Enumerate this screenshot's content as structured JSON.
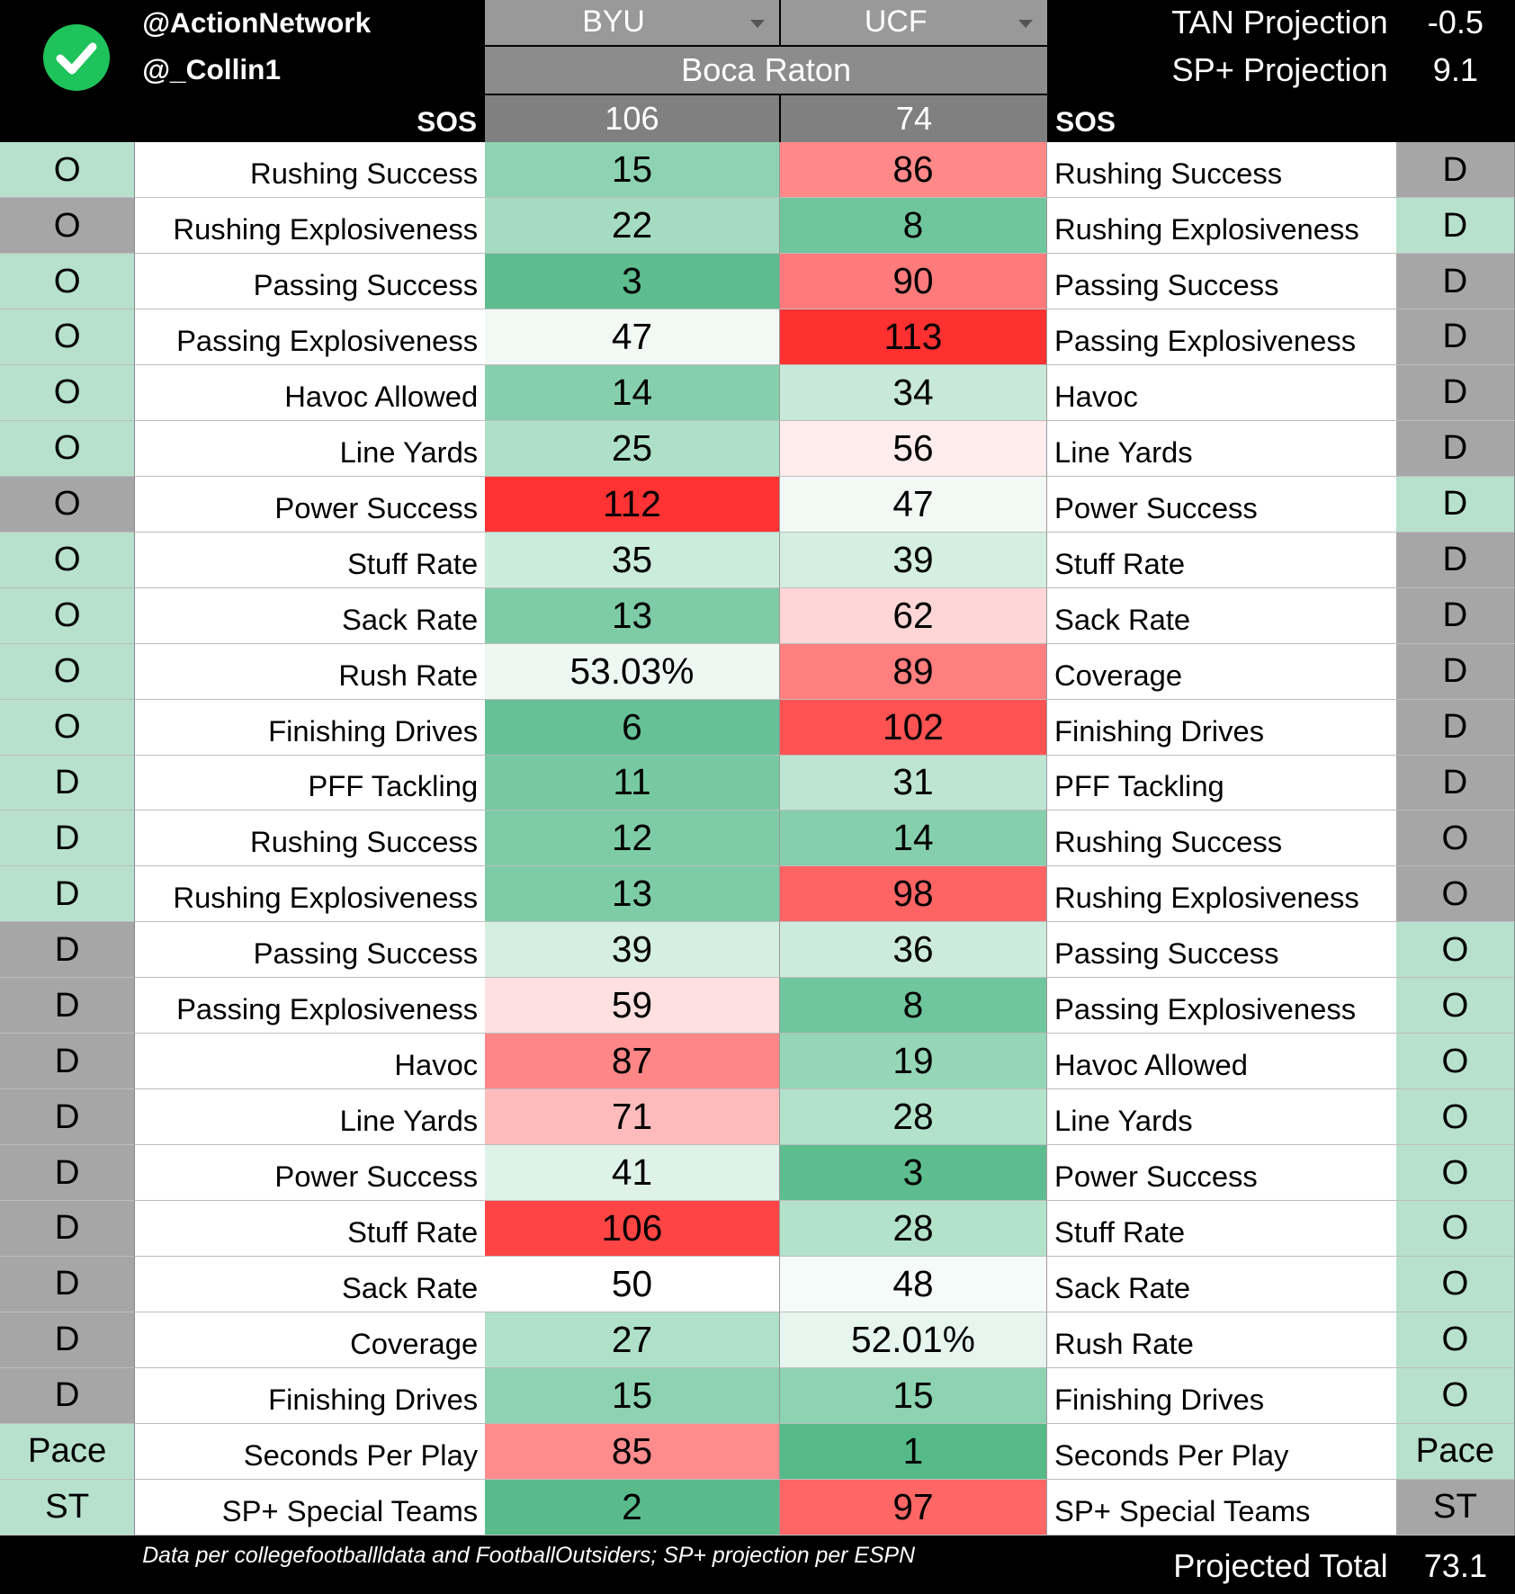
{
  "header": {
    "handle_1": "@ActionNetwork",
    "handle_2": "@_Collin1",
    "team_1": "BYU",
    "team_2": "UCF",
    "location": "Boca Raton",
    "sos_label_left": "SOS",
    "sos_label_right": "SOS",
    "sos_1": 106,
    "sos_2": 74,
    "tan_label": "TAN Projection",
    "tan_value": -0.5,
    "sp_label": "SP+ Projection",
    "sp_value": 9.1
  },
  "colors": {
    "side_green": "#b7e1cd",
    "side_gray": "#a6a6a6"
  },
  "rows": [
    {
      "side": "O",
      "label": "Rushing Success",
      "byu": 15,
      "ucf": 86,
      "opp_label": "Rushing Success",
      "opp_side": "D",
      "side_color": "side_green",
      "opp_color": "side_gray",
      "byu_color": "#8dd3b1",
      "ucf_color": "#ff8888"
    },
    {
      "side": "O",
      "label": "Rushing Explosiveness",
      "byu": 22,
      "ucf": 8,
      "opp_label": "Rushing Explosiveness",
      "opp_side": "D",
      "side_color": "side_gray",
      "opp_color": "side_green",
      "byu_color": "#a5dcc1",
      "ucf_color": "#6fc69c"
    },
    {
      "side": "O",
      "label": "Passing Success",
      "byu": 3,
      "ucf": 90,
      "opp_label": "Passing Success",
      "opp_side": "D",
      "side_color": "side_green",
      "opp_color": "side_gray",
      "byu_color": "#5dbd8f",
      "ucf_color": "#ff7b7b"
    },
    {
      "side": "O",
      "label": "Passing Explosiveness",
      "byu": 47,
      "ucf": 113,
      "opp_label": "Passing Explosiveness",
      "opp_side": "D",
      "side_color": "side_green",
      "opp_color": "side_gray",
      "byu_color": "#f2f9f5",
      "ucf_color": "#ff3030"
    },
    {
      "side": "O",
      "label": "Havoc Allowed",
      "byu": 14,
      "ucf": 34,
      "opp_label": "Havoc",
      "opp_side": "D",
      "side_color": "side_green",
      "opp_color": "side_gray",
      "byu_color": "#86cfac",
      "ucf_color": "#c8e9d9"
    },
    {
      "side": "O",
      "label": "Line Yards",
      "byu": 25,
      "ucf": 56,
      "opp_label": "Line Yards",
      "opp_side": "D",
      "side_color": "side_green",
      "opp_color": "side_gray",
      "byu_color": "#ade0c7",
      "ucf_color": "#ffecec"
    },
    {
      "side": "O",
      "label": "Power Success",
      "byu": 112,
      "ucf": 47,
      "opp_label": "Power Success",
      "opp_side": "D",
      "side_color": "side_gray",
      "opp_color": "side_green",
      "byu_color": "#ff3333",
      "ucf_color": "#f2f9f5"
    },
    {
      "side": "O",
      "label": "Stuff Rate",
      "byu": 35,
      "ucf": 39,
      "opp_label": "Stuff Rate",
      "opp_side": "D",
      "side_color": "side_green",
      "opp_color": "side_gray",
      "byu_color": "#cbebdb",
      "ucf_color": "#d4eee2"
    },
    {
      "side": "O",
      "label": "Sack Rate",
      "byu": 13,
      "ucf": 62,
      "opp_label": "Sack Rate",
      "opp_side": "D",
      "side_color": "side_green",
      "opp_color": "side_gray",
      "byu_color": "#7ecca6",
      "ucf_color": "#ffd6d6"
    },
    {
      "side": "O",
      "label": "Rush Rate",
      "byu": "53.03%",
      "ucf": 89,
      "opp_label": "Coverage",
      "opp_side": "D",
      "side_color": "side_green",
      "opp_color": "side_gray",
      "byu_color": "#eef8f3",
      "ucf_color": "#ff7e7e"
    },
    {
      "side": "O",
      "label": "Finishing Drives",
      "byu": 6,
      "ucf": 102,
      "opp_label": "Finishing Drives",
      "opp_side": "D",
      "side_color": "side_green",
      "opp_color": "side_gray",
      "byu_color": "#66c196",
      "ucf_color": "#ff5252"
    },
    {
      "side": "D",
      "label": "PFF Tackling",
      "byu": 11,
      "ucf": 31,
      "opp_label": "PFF Tackling",
      "opp_side": "D",
      "side_color": "side_green",
      "opp_color": "side_gray",
      "byu_color": "#77c9a1",
      "ucf_color": "#bde5d2"
    },
    {
      "side": "D",
      "label": "Rushing Success",
      "byu": 12,
      "ucf": 14,
      "opp_label": "Rushing Success",
      "opp_side": "O",
      "side_color": "side_green",
      "opp_color": "side_gray",
      "byu_color": "#7ecca6",
      "ucf_color": "#86cfac"
    },
    {
      "side": "D",
      "label": "Rushing Explosiveness",
      "byu": 13,
      "ucf": 98,
      "opp_label": "Rushing Explosiveness",
      "opp_side": "O",
      "side_color": "side_green",
      "opp_color": "side_gray",
      "byu_color": "#7ecca6",
      "ucf_color": "#ff6464"
    },
    {
      "side": "D",
      "label": "Passing Success",
      "byu": 39,
      "ucf": 36,
      "opp_label": "Passing Success",
      "opp_side": "O",
      "side_color": "side_gray",
      "opp_color": "side_green",
      "byu_color": "#d4eee2",
      "ucf_color": "#cdebdd"
    },
    {
      "side": "D",
      "label": "Passing Explosiveness",
      "byu": 59,
      "ucf": 8,
      "opp_label": "Passing Explosiveness",
      "opp_side": "O",
      "side_color": "side_gray",
      "opp_color": "side_green",
      "byu_color": "#ffe0e0",
      "ucf_color": "#6fc69c"
    },
    {
      "side": "D",
      "label": "Havoc",
      "byu": 87,
      "ucf": 19,
      "opp_label": "Havoc Allowed",
      "opp_side": "O",
      "side_color": "side_gray",
      "opp_color": "side_green",
      "byu_color": "#ff8686",
      "ucf_color": "#95d6b6"
    },
    {
      "side": "D",
      "label": "Line Yards",
      "byu": 71,
      "ucf": 28,
      "opp_label": "Line Yards",
      "opp_side": "O",
      "side_color": "side_gray",
      "opp_color": "side_green",
      "byu_color": "#ffbbbb",
      "ucf_color": "#b3e2cb"
    },
    {
      "side": "D",
      "label": "Power Success",
      "byu": 41,
      "ucf": 3,
      "opp_label": "Power Success",
      "opp_side": "O",
      "side_color": "side_gray",
      "opp_color": "side_green",
      "byu_color": "#dff2e9",
      "ucf_color": "#5dbd8f"
    },
    {
      "side": "D",
      "label": "Stuff Rate",
      "byu": 106,
      "ucf": 28,
      "opp_label": "Stuff Rate",
      "opp_side": "O",
      "side_color": "side_gray",
      "opp_color": "side_green",
      "byu_color": "#ff4444",
      "ucf_color": "#b3e2cb"
    },
    {
      "side": "D",
      "label": "Sack Rate",
      "byu": 50,
      "ucf": 48,
      "opp_label": "Sack Rate",
      "opp_side": "O",
      "side_color": "side_gray",
      "opp_color": "side_green",
      "byu_color": "#ffffff",
      "ucf_color": "#f5fbf8"
    },
    {
      "side": "D",
      "label": "Coverage",
      "byu": 27,
      "ucf": "52.01%",
      "opp_label": "Rush Rate",
      "opp_side": "O",
      "side_color": "side_gray",
      "opp_color": "side_green",
      "byu_color": "#afe0c8",
      "ucf_color": "#e6f5ee"
    },
    {
      "side": "D",
      "label": "Finishing Drives",
      "byu": 15,
      "ucf": 15,
      "opp_label": "Finishing Drives",
      "opp_side": "O",
      "side_color": "side_gray",
      "opp_color": "side_green",
      "byu_color": "#8dd3b1",
      "ucf_color": "#8dd3b1"
    },
    {
      "side": "Pace",
      "label": "Seconds Per Play",
      "byu": 85,
      "ucf": 1,
      "opp_label": "Seconds Per Play",
      "opp_side": "Pace",
      "side_color": "side_green",
      "opp_color": "side_green",
      "byu_color": "#ff8c8c",
      "ucf_color": "#55b988"
    },
    {
      "side": "ST",
      "label": "SP+ Special Teams",
      "byu": 2,
      "ucf": 97,
      "opp_label": "SP+ Special Teams",
      "opp_side": "ST",
      "side_color": "side_green",
      "opp_color": "side_gray",
      "byu_color": "#59bb8c",
      "ucf_color": "#ff6666"
    }
  ],
  "footer": {
    "note": "Data per collegefootballldata and FootballOutsiders; SP+ projection per ESPN",
    "total_label": "Projected Total",
    "total_value": 73.1
  }
}
